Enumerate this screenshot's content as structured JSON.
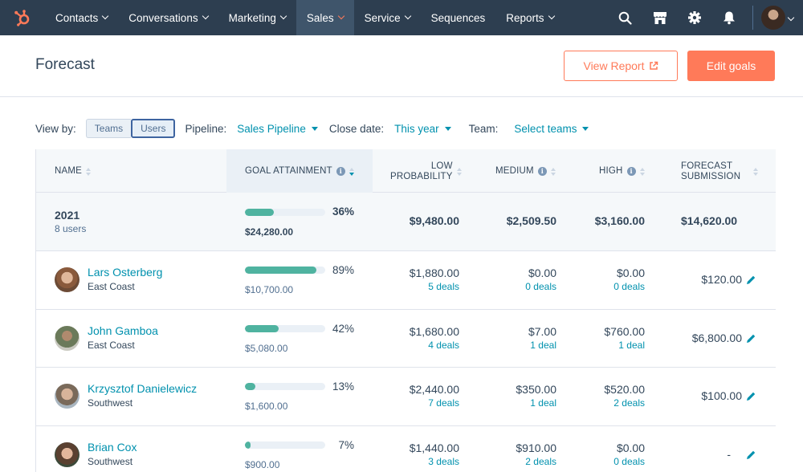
{
  "nav": {
    "items": [
      {
        "label": "Contacts",
        "caret": true
      },
      {
        "label": "Conversations",
        "caret": true
      },
      {
        "label": "Marketing",
        "caret": true
      },
      {
        "label": "Sales",
        "caret": true,
        "active": true
      },
      {
        "label": "Service",
        "caret": true
      },
      {
        "label": "Sequences",
        "caret": false
      },
      {
        "label": "Reports",
        "caret": true
      }
    ],
    "icons": [
      "search-icon",
      "marketplace-icon",
      "settings-gear-icon",
      "notifications-bell-icon"
    ],
    "brand_color": "#ff7a59",
    "bg_color": "#2d3e50"
  },
  "header": {
    "title": "Forecast",
    "view_report": "View Report",
    "edit_goals": "Edit goals"
  },
  "filters": {
    "view_by_label": "View by:",
    "toggle_teams": "Teams",
    "toggle_users": "Users",
    "toggle_selected": "Users",
    "pipeline_label": "Pipeline:",
    "pipeline_value": "Sales Pipeline",
    "close_date_label": "Close date:",
    "close_date_value": "This year",
    "team_label": "Team:",
    "team_value": "Select teams"
  },
  "table": {
    "headers": {
      "name": "NAME",
      "goal": "GOAL ATTAINMENT",
      "low1": "LOW",
      "low2": "PROBABILITY",
      "medium": "MEDIUM",
      "high": "HIGH",
      "fc1": "FORECAST",
      "fc2": "SUBMISSION"
    },
    "summary": {
      "year": "2021",
      "users": "8 users",
      "goal_pct": "36%",
      "goal_fraction": 0.36,
      "goal_amount": "$24,280.00",
      "low": "$9,480.00",
      "medium": "$2,509.50",
      "high": "$3,160.00",
      "submission": "$14,620.00"
    },
    "rows": [
      {
        "name": "Lars Osterberg",
        "team": "East Coast",
        "goal_pct": "89%",
        "goal_fraction": 0.89,
        "goal_amount": "$10,700.00",
        "low": "$1,880.00",
        "low_deals": "5 deals",
        "medium": "$0.00",
        "medium_deals": "0 deals",
        "high": "$0.00",
        "high_deals": "0 deals",
        "submission": "$120.00"
      },
      {
        "name": "John Gamboa",
        "team": "East Coast",
        "goal_pct": "42%",
        "goal_fraction": 0.42,
        "goal_amount": "$5,080.00",
        "low": "$1,680.00",
        "low_deals": "4 deals",
        "medium": "$7.00",
        "medium_deals": "1 deal",
        "high": "$760.00",
        "high_deals": "1 deal",
        "submission": "$6,800.00"
      },
      {
        "name": "Krzysztof Danielewicz",
        "team": "Southwest",
        "goal_pct": "13%",
        "goal_fraction": 0.13,
        "goal_amount": "$1,600.00",
        "low": "$2,440.00",
        "low_deals": "7 deals",
        "medium": "$350.00",
        "medium_deals": "1 deal",
        "high": "$520.00",
        "high_deals": "2 deals",
        "submission": "$100.00"
      },
      {
        "name": "Brian Cox",
        "team": "Southwest",
        "goal_pct": "7%",
        "goal_fraction": 0.07,
        "goal_amount": "$900.00",
        "low": "$1,440.00",
        "low_deals": "3 deals",
        "medium": "$910.00",
        "medium_deals": "2 deals",
        "high": "$0.00",
        "high_deals": "0 deals",
        "submission": "-"
      }
    ]
  },
  "colors": {
    "accent": "#ff7a59",
    "link": "#0091ae",
    "progress": "#4fb3a0"
  }
}
